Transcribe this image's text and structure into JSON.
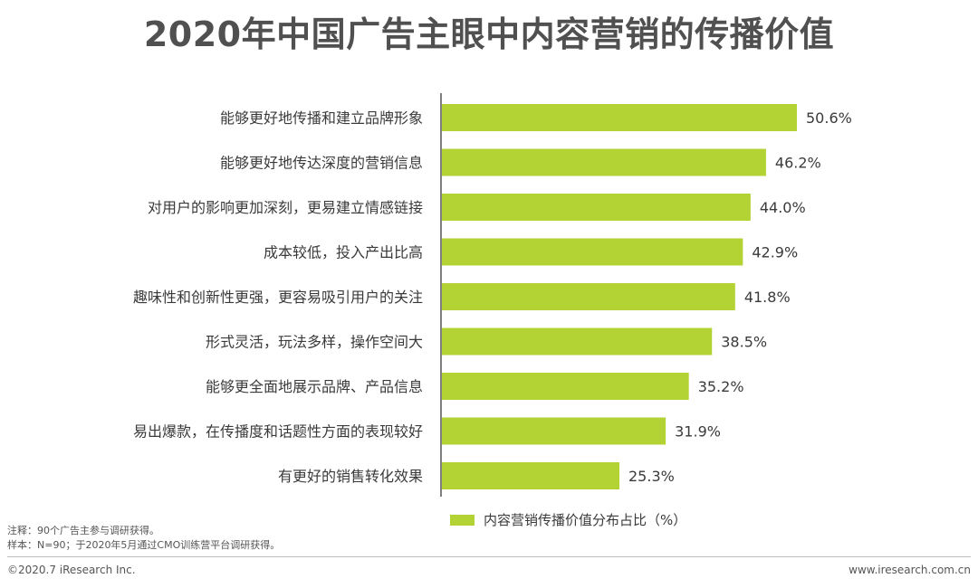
{
  "title": "2020年中国广告主眼中内容营销的传播价值",
  "chart_data": {
    "type": "bar",
    "orientation": "horizontal",
    "categories": [
      "能够更好地传播和建立品牌形象",
      "能够更好地传达深度的营销信息",
      "对用户的影响更加深刻，更易建立情感链接",
      "成本较低，投入产出比高",
      "趣味性和创新性更强，更容易吸引用户的关注",
      "形式灵活，玩法多样，操作空间大",
      "能够更全面地展示品牌、产品信息",
      "易出爆款，在传播度和话题性方面的表现较好",
      "有更好的销售转化效果"
    ],
    "values": [
      50.6,
      46.2,
      44.0,
      42.9,
      41.8,
      38.5,
      35.2,
      31.9,
      25.3
    ],
    "value_labels": [
      "50.6%",
      "46.2%",
      "44.0%",
      "42.9%",
      "41.8%",
      "38.5%",
      "35.2%",
      "31.9%",
      "25.3%"
    ],
    "series": [
      {
        "name": "内容营销传播价值分布占比（%）",
        "values": [
          50.6,
          46.2,
          44.0,
          42.9,
          41.8,
          38.5,
          35.2,
          31.9,
          25.3
        ]
      }
    ],
    "xlim": [
      0,
      50.6
    ],
    "grid": false,
    "legend_position": "bottom",
    "bar_color": "#b3d334"
  },
  "legend": {
    "label": "内容营销传播价值分布占比（%）",
    "color": "#b3d334"
  },
  "notes": {
    "line1": "注释：90个广告主参与调研获得。",
    "line2": "样本：N=90；于2020年5月通过CMO训练营平台调研获得。"
  },
  "footer": {
    "copyright": "©2020.7 iResearch Inc.",
    "website": "www.iresearch.com.cn"
  }
}
